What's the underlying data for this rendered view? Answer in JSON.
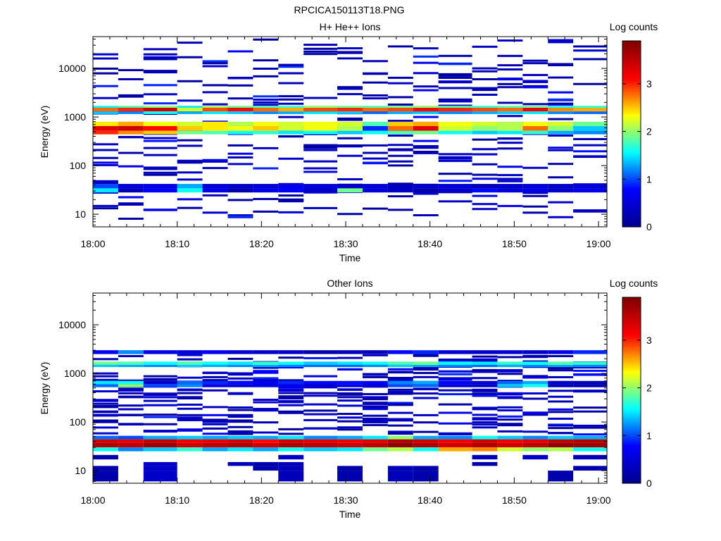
{
  "figure_title": "RPCICA150113T18.PNG",
  "colors": {
    "colormap": [
      "#00008f",
      "#0000ff",
      "#00ffff",
      "#ffff00",
      "#ff0000",
      "#800000"
    ],
    "background": "#ffffff",
    "axes": "#000000"
  },
  "chart_data": [
    {
      "type": "heatmap",
      "title": "H+ He++ Ions",
      "xlabel": "Time",
      "ylabel": "Energy (eV)",
      "x_ticks": [
        "18:00",
        "18:10",
        "18:20",
        "18:30",
        "18:40",
        "18:50",
        "19:00"
      ],
      "x_range": [
        "18:00",
        "19:01"
      ],
      "y_scale": "log",
      "y_ticks": [
        10,
        100,
        1000,
        10000
      ],
      "y_range": [
        5.5,
        45000
      ],
      "colorbar": {
        "label": "Log counts",
        "ticks": [
          0,
          1,
          2,
          3
        ],
        "range": [
          0,
          3.9
        ]
      },
      "time_bins": [
        "18:00",
        "18:03",
        "18:06",
        "18:10",
        "18:13",
        "18:16",
        "18:19",
        "18:22",
        "18:25",
        "18:29",
        "18:32",
        "18:35",
        "18:38",
        "18:41",
        "18:45",
        "18:48",
        "18:51",
        "18:54",
        "18:57"
      ],
      "bands": [
        {
          "e": [
            1300,
            1550
          ],
          "v": [
            2.8,
            3.0,
            3.4,
            2.2,
            2.9,
            3.1,
            2.8,
            2.6,
            2.9,
            3.0,
            2.8,
            2.9,
            3.1,
            3.0,
            2.9,
            2.8,
            3.2,
            2.7,
            2.6
          ]
        },
        {
          "e": [
            1550,
            1700
          ],
          "v": [
            1.6,
            1.8,
            2.0,
            1.5,
            2.1,
            1.9,
            1.8,
            1.7,
            2.0,
            1.9,
            1.8,
            1.9,
            2.0,
            1.8,
            1.7,
            1.8,
            1.9,
            1.6,
            1.7
          ]
        },
        {
          "e": [
            1150,
            1300
          ],
          "v": [
            1.4,
            1.2,
            1.6,
            1.3,
            1.5,
            1.4,
            1.2,
            1.3,
            1.5,
            1.4,
            1.1,
            1.3,
            1.4,
            1.2,
            1.3,
            1.4,
            1.5,
            1.2,
            1.1
          ]
        },
        {
          "e": [
            650,
            800
          ],
          "v": [
            2.4,
            2.6,
            2.3,
            2.2,
            2.4,
            2.1,
            2.3,
            2.2,
            2.3,
            2.2,
            1.8,
            2.5,
            2.6,
            2.3,
            2.2,
            2.1,
            2.3,
            2.2,
            1.9
          ]
        },
        {
          "e": [
            520,
            650
          ],
          "v": [
            3.3,
            3.4,
            3.1,
            2.5,
            2.4,
            2.3,
            2.5,
            2.2,
            2.3,
            2.1,
            0.9,
            2.8,
            3.3,
            2.2,
            2.0,
            2.1,
            2.8,
            2.0,
            1.4
          ]
        },
        {
          "e": [
            440,
            520
          ],
          "v": [
            3.0,
            2.7,
            2.5,
            1.9,
            1.8,
            1.6,
            1.7,
            1.5,
            1.6,
            1.4,
            1.6,
            1.8,
            1.9,
            1.6,
            1.4,
            1.5,
            1.7,
            1.3,
            1.2
          ]
        },
        {
          "e": [
            34,
            42
          ],
          "v": [
            1.0,
            0.5,
            0.6,
            1.3,
            0.5,
            0.4,
            0.5,
            0.6,
            0.5,
            0.4,
            0.5,
            0.3,
            0.4,
            0.5,
            0.3,
            0.4,
            0.5,
            0.4,
            0.5
          ]
        },
        {
          "e": [
            28,
            34
          ],
          "v": [
            1.5,
            0.3,
            0.7,
            1.6,
            0.6,
            0.2,
            0.6,
            0.7,
            0.4,
            1.9,
            0.5,
            0.4,
            0.2,
            0.4,
            0.8,
            0.5,
            0.6,
            0.4,
            0.6
          ]
        }
      ],
      "sparse_seed": 7,
      "sparse_e_range": [
        8,
        40000
      ]
    },
    {
      "type": "heatmap",
      "title": "Other Ions",
      "xlabel": "Time",
      "ylabel": "Energy (eV)",
      "x_ticks": [
        "18:00",
        "18:10",
        "18:20",
        "18:30",
        "18:40",
        "18:50",
        "19:00"
      ],
      "x_range": [
        "18:00",
        "19:01"
      ],
      "y_scale": "log",
      "y_ticks": [
        10,
        100,
        1000,
        10000
      ],
      "y_range": [
        5.5,
        45000
      ],
      "colorbar": {
        "label": "Log counts",
        "ticks": [
          0,
          1,
          2,
          3
        ],
        "range": [
          0,
          3.9
        ]
      },
      "time_bins": [
        "18:00",
        "18:03",
        "18:06",
        "18:10",
        "18:13",
        "18:16",
        "18:19",
        "18:22",
        "18:25",
        "18:29",
        "18:32",
        "18:35",
        "18:38",
        "18:41",
        "18:45",
        "18:48",
        "18:51",
        "18:54",
        "18:57"
      ],
      "bands": [
        {
          "e": [
            2500,
            3000
          ],
          "v": [
            0.7,
            1.2,
            0.6,
            0.5,
            0.7,
            0.5,
            0.4,
            0.4,
            0.2,
            0.3,
            0.3,
            0.8,
            0.9,
            0.5,
            0.4,
            0.5,
            0.4,
            0.6,
            0.9
          ]
        },
        {
          "e": [
            1500,
            1750
          ],
          "v": [
            1.9,
            1.8,
            1.6,
            1.8,
            1.6,
            1.5,
            1.7,
            1.6,
            1.4,
            1.5,
            1.6,
            1.8,
            1.9,
            1.6,
            1.5,
            1.7,
            1.6,
            1.8,
            1.7
          ]
        },
        {
          "e": [
            1350,
            1500
          ],
          "v": [
            1.4,
            1.3,
            1.2,
            1.4,
            1.3,
            1.2,
            1.3,
            1.2,
            1.1,
            1.1,
            1.2,
            1.4,
            1.3,
            1.2,
            1.1,
            1.3,
            1.2,
            1.3,
            1.2
          ]
        },
        {
          "e": [
            600,
            700
          ],
          "v": [
            1.5,
            1.6,
            0.4,
            1.1,
            0.9,
            0.8,
            0.7,
            0.9,
            0.8,
            0.8,
            0.7,
            1.2,
            1.3,
            0.7,
            0.5,
            1.1,
            1.3,
            0.4,
            0.3
          ]
        },
        {
          "e": [
            520,
            600
          ],
          "v": [
            1.1,
            2.0,
            1.0,
            1.2,
            0.6,
            0.5,
            0.6,
            0.7,
            0.5,
            0.6,
            0.5,
            1.0,
            1.1,
            0.5,
            0.4,
            1.4,
            1.6,
            0.3,
            0.2
          ]
        },
        {
          "e": [
            44,
            52
          ],
          "v": [
            1.1,
            1.0,
            1.3,
            1.4,
            1.3,
            1.4,
            1.3,
            1.5,
            1.2,
            1.3,
            1.5,
            2.0,
            1.3,
            1.2,
            1.6,
            1.4,
            1.2,
            1.4,
            1.3
          ]
        },
        {
          "e": [
            37,
            44
          ],
          "v": [
            3.4,
            3.3,
            3.5,
            3.2,
            3.3,
            3.4,
            3.1,
            3.4,
            3.3,
            3.2,
            3.3,
            3.6,
            3.4,
            3.2,
            3.4,
            3.2,
            3.3,
            3.5,
            3.6
          ]
        },
        {
          "e": [
            30,
            37
          ],
          "v": [
            3.6,
            3.5,
            3.7,
            3.4,
            3.5,
            3.6,
            3.4,
            3.6,
            3.5,
            3.4,
            3.5,
            3.8,
            3.6,
            3.4,
            3.6,
            3.4,
            3.5,
            3.8,
            3.7
          ]
        },
        {
          "e": [
            25,
            30
          ],
          "v": [
            1.6,
            1.2,
            1.4,
            1.7,
            1.3,
            1.5,
            1.3,
            1.6,
            1.4,
            1.5,
            1.9,
            2.1,
            1.6,
            2.6,
            2.7,
            2.2,
            2.0,
            2.1,
            1.6
          ]
        },
        {
          "e": [
            17,
            21
          ],
          "v": [
            0.2,
            null,
            null,
            null,
            null,
            null,
            null,
            0.4,
            null,
            null,
            null,
            null,
            null,
            null,
            0.3,
            null,
            0.4,
            null,
            0.3
          ]
        },
        {
          "e": [
            12.5,
            15
          ],
          "v": [
            null,
            null,
            0.4,
            null,
            null,
            0.3,
            0.2,
            0.3,
            null,
            null,
            null,
            null,
            null,
            null,
            0.2,
            null,
            null,
            null,
            null
          ]
        },
        {
          "e": [
            10,
            12.5
          ],
          "v": [
            0.2,
            null,
            0.4,
            null,
            null,
            null,
            0.2,
            0.3,
            null,
            0.2,
            null,
            0.3,
            0.2,
            null,
            null,
            null,
            null,
            null,
            0.2
          ]
        },
        {
          "e": [
            6,
            10
          ],
          "v": [
            0.2,
            null,
            0.4,
            null,
            null,
            null,
            null,
            0.3,
            null,
            0.2,
            null,
            0.3,
            0.2,
            null,
            null,
            null,
            null,
            0.2,
            null
          ]
        }
      ],
      "sparse_seed": 13,
      "sparse_e_range": [
        55,
        2400
      ]
    }
  ]
}
